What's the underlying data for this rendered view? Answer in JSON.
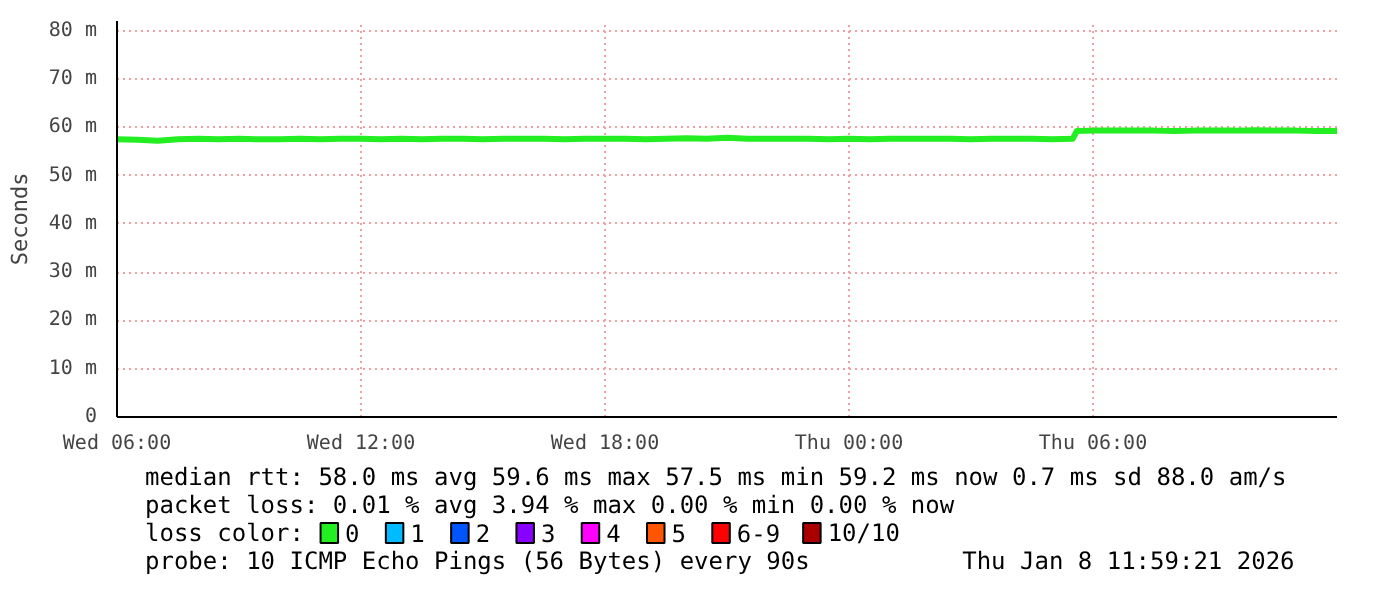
{
  "chart_data": {
    "type": "line",
    "ylabel": "Seconds",
    "x": [
      "2026-01-07T06:00",
      "2026-01-07T06:30",
      "2026-01-07T07:00",
      "2026-01-07T07:30",
      "2026-01-07T08:00",
      "2026-01-07T08:30",
      "2026-01-07T09:00",
      "2026-01-07T09:30",
      "2026-01-07T10:00",
      "2026-01-07T10:30",
      "2026-01-07T11:00",
      "2026-01-07T11:30",
      "2026-01-07T12:00",
      "2026-01-07T12:30",
      "2026-01-07T13:00",
      "2026-01-07T13:30",
      "2026-01-07T14:00",
      "2026-01-07T14:30",
      "2026-01-07T15:00",
      "2026-01-07T15:30",
      "2026-01-07T16:00",
      "2026-01-07T16:30",
      "2026-01-07T17:00",
      "2026-01-07T17:30",
      "2026-01-07T18:00",
      "2026-01-07T18:30",
      "2026-01-07T19:00",
      "2026-01-07T19:30",
      "2026-01-07T20:00",
      "2026-01-07T20:30",
      "2026-01-07T21:00",
      "2026-01-07T21:30",
      "2026-01-07T22:00",
      "2026-01-07T22:30",
      "2026-01-07T23:00",
      "2026-01-07T23:30",
      "2026-01-08T00:00",
      "2026-01-08T00:30",
      "2026-01-08T01:00",
      "2026-01-08T01:30",
      "2026-01-08T02:00",
      "2026-01-08T02:30",
      "2026-01-08T03:00",
      "2026-01-08T03:30",
      "2026-01-08T04:00",
      "2026-01-08T04:30",
      "2026-01-08T05:00",
      "2026-01-08T05:30",
      "2026-01-08T05:36",
      "2026-01-08T06:00",
      "2026-01-08T06:30",
      "2026-01-08T07:00",
      "2026-01-08T07:30",
      "2026-01-08T08:00",
      "2026-01-08T08:30",
      "2026-01-08T09:00",
      "2026-01-08T09:30",
      "2026-01-08T10:00",
      "2026-01-08T10:30",
      "2026-01-08T11:00",
      "2026-01-08T11:30",
      "2026-01-08T12:00"
    ],
    "series": [
      {
        "name": "0",
        "color": "#22ee22",
        "values": [
          57.5,
          57.4,
          57.2,
          57.5,
          57.6,
          57.5,
          57.6,
          57.5,
          57.5,
          57.6,
          57.5,
          57.6,
          57.6,
          57.5,
          57.6,
          57.5,
          57.6,
          57.6,
          57.5,
          57.6,
          57.6,
          57.6,
          57.5,
          57.6,
          57.6,
          57.6,
          57.5,
          57.6,
          57.7,
          57.6,
          57.8,
          57.6,
          57.6,
          57.6,
          57.6,
          57.5,
          57.6,
          57.5,
          57.6,
          57.6,
          57.6,
          57.6,
          57.5,
          57.6,
          57.6,
          57.6,
          57.5,
          57.6,
          59.2,
          59.3,
          59.3,
          59.3,
          59.3,
          59.2,
          59.3,
          59.3,
          59.3,
          59.4,
          59.3,
          59.3,
          59.2,
          59.2
        ]
      },
      {
        "name": "1",
        "color": "#00bbff",
        "values": [
          null,
          null,
          null,
          null,
          null,
          null,
          null,
          null,
          null,
          null,
          null,
          null,
          null,
          null,
          null,
          null,
          null,
          null,
          null,
          null,
          null,
          null,
          null,
          null,
          null,
          null,
          null,
          null,
          null,
          null,
          null,
          null,
          null,
          null,
          null,
          null,
          null,
          null,
          null,
          null,
          null,
          null,
          null,
          null,
          null,
          null,
          null,
          null,
          null,
          null,
          null,
          null,
          null,
          null,
          null,
          null,
          null,
          null,
          null,
          null,
          null,
          null
        ]
      },
      {
        "name": "2",
        "color": "#0055ff",
        "values": [
          null,
          null,
          null,
          null,
          null,
          null,
          null,
          null,
          null,
          null,
          null,
          null,
          null,
          null,
          null,
          null,
          null,
          null,
          null,
          null,
          null,
          null,
          null,
          null,
          null,
          null,
          null,
          null,
          null,
          null,
          null,
          null,
          null,
          null,
          null,
          null,
          null,
          null,
          null,
          null,
          null,
          null,
          null,
          null,
          null,
          null,
          null,
          null,
          null,
          null,
          null,
          null,
          null,
          null,
          null,
          null,
          null,
          null,
          null,
          null,
          null,
          null
        ]
      },
      {
        "name": "3",
        "color": "#8800ff",
        "values": [
          null,
          null,
          null,
          null,
          null,
          null,
          null,
          null,
          null,
          null,
          null,
          null,
          null,
          null,
          null,
          null,
          null,
          null,
          null,
          null,
          null,
          null,
          null,
          null,
          null,
          null,
          null,
          null,
          null,
          null,
          null,
          null,
          null,
          null,
          null,
          null,
          null,
          null,
          null,
          null,
          null,
          null,
          null,
          null,
          null,
          null,
          null,
          null,
          null,
          null,
          null,
          null,
          null,
          null,
          null,
          null,
          null,
          null,
          null,
          null,
          null,
          null
        ]
      },
      {
        "name": "4",
        "color": "#ff00ff",
        "values": [
          null,
          null,
          null,
          null,
          null,
          null,
          null,
          null,
          null,
          null,
          null,
          null,
          null,
          null,
          null,
          null,
          null,
          null,
          null,
          null,
          null,
          null,
          null,
          null,
          null,
          null,
          null,
          null,
          null,
          null,
          null,
          null,
          null,
          null,
          null,
          null,
          null,
          null,
          null,
          null,
          null,
          null,
          null,
          null,
          null,
          null,
          null,
          null,
          null,
          null,
          null,
          null,
          null,
          null,
          null,
          null,
          null,
          null,
          null,
          null,
          null,
          null
        ]
      },
      {
        "name": "5",
        "color": "#ff5500",
        "values": [
          null,
          null,
          null,
          null,
          null,
          null,
          null,
          null,
          null,
          null,
          null,
          null,
          null,
          null,
          null,
          null,
          null,
          null,
          null,
          null,
          null,
          null,
          null,
          null,
          null,
          null,
          null,
          null,
          null,
          null,
          null,
          null,
          null,
          null,
          null,
          null,
          null,
          null,
          null,
          null,
          null,
          null,
          null,
          null,
          null,
          null,
          null,
          null,
          null,
          null,
          null,
          null,
          null,
          null,
          null,
          null,
          null,
          null,
          null,
          null,
          null,
          null
        ]
      },
      {
        "name": "6-9",
        "color": "#ff0000",
        "values": [
          null,
          null,
          null,
          null,
          null,
          null,
          null,
          null,
          null,
          null,
          null,
          null,
          null,
          null,
          null,
          null,
          null,
          null,
          null,
          null,
          null,
          null,
          null,
          null,
          null,
          null,
          null,
          null,
          null,
          null,
          null,
          null,
          null,
          null,
          null,
          null,
          null,
          null,
          null,
          null,
          null,
          null,
          null,
          null,
          null,
          null,
          null,
          null,
          null,
          null,
          null,
          null,
          null,
          null,
          null,
          null,
          null,
          null,
          null,
          null,
          null,
          null
        ]
      },
      {
        "name": "10/10",
        "color": "#aa0000",
        "values": [
          null,
          null,
          null,
          null,
          null,
          null,
          null,
          null,
          null,
          null,
          null,
          null,
          null,
          null,
          null,
          null,
          null,
          null,
          null,
          null,
          null,
          null,
          null,
          null,
          null,
          null,
          null,
          null,
          null,
          null,
          null,
          null,
          null,
          null,
          null,
          null,
          null,
          null,
          null,
          null,
          null,
          null,
          null,
          null,
          null,
          null,
          null,
          null,
          null,
          null,
          null,
          null,
          null,
          null,
          null,
          null,
          null,
          null,
          null,
          null,
          null,
          null
        ]
      }
    ],
    "legend_title": "loss color:",
    "legend": "bottom",
    "xlim": [
      "2026-01-07T06:00",
      "2026-01-08T12:00"
    ],
    "xticks": [
      {
        "value": "2026-01-07T06:00",
        "label": "Wed 06:00"
      },
      {
        "value": "2026-01-07T12:00",
        "label": "Wed 12:00"
      },
      {
        "value": "2026-01-07T18:00",
        "label": "Wed 18:00"
      },
      {
        "value": "2026-01-08T00:00",
        "label": "Thu 00:00"
      },
      {
        "value": "2026-01-08T06:00",
        "label": "Thu 06:00"
      }
    ],
    "ylim": [
      0,
      82
    ],
    "yticks": [
      0,
      {
        "value": 10,
        "label": "10 m"
      },
      {
        "value": 20,
        "label": "20 m"
      },
      {
        "value": 30,
        "label": "30 m"
      },
      {
        "value": 40,
        "label": "40 m"
      },
      {
        "value": 50,
        "label": "50 m"
      },
      {
        "value": 60,
        "label": "60 m"
      },
      {
        "value": 70,
        "label": "70 m"
      },
      {
        "value": 80,
        "label": "80 m"
      }
    ],
    "grid": true,
    "line_style": "solid",
    "marker": "none",
    "annotations": [
      "median rtt:  58.0 ms avg  59.6 ms max  57.5 ms min  59.2 ms now  0.7 ms sd  88.0   am/s",
      "packet loss: 0.01 % avg  3.94 % max  0.00 % min  0.00 % now",
      "probe:       10 ICMP Echo Pings (56 Bytes) every 90s",
      "Thu Jan  8 11:59:21 2026"
    ]
  }
}
